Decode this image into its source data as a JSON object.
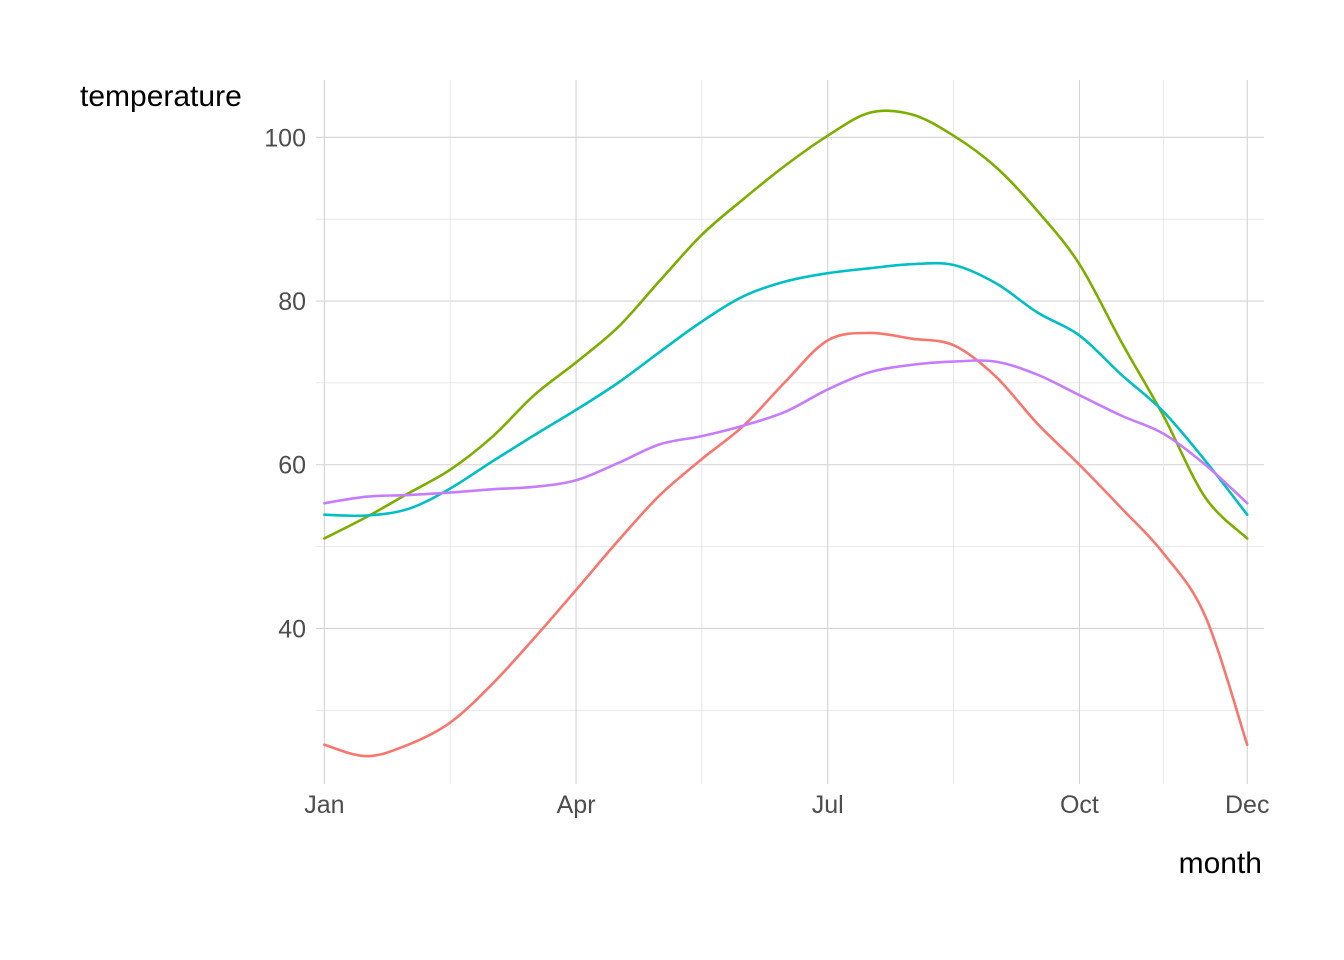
{
  "chart_data": {
    "type": "line",
    "title": "",
    "xlabel": "month",
    "ylabel": "temperature",
    "x_ticks": [
      "Jan",
      "Apr",
      "Jul",
      "Oct",
      "Dec"
    ],
    "y_ticks": [
      "40",
      "60",
      "80",
      "100"
    ],
    "xlim": [
      0.9,
      12.2
    ],
    "ylim": [
      21,
      107
    ],
    "grid": true,
    "legend": "none",
    "months": [
      1,
      1.5,
      2,
      2.5,
      3,
      3.5,
      4,
      4.5,
      5,
      5.5,
      6,
      6.5,
      7,
      7.5,
      8,
      8.5,
      9,
      9.5,
      10,
      10.5,
      11,
      11.5,
      12
    ],
    "series": [
      {
        "color": "#F8766D",
        "values": [
          25.8,
          24.4,
          25.8,
          28.5,
          33.2,
          38.8,
          44.7,
          50.7,
          56.3,
          60.7,
          64.8,
          70.2,
          75.2,
          76.1,
          75.4,
          74.6,
          70.8,
          65.0,
          60.0,
          54.7,
          49.2,
          41.5,
          25.8
        ]
      },
      {
        "color": "#7CAE00",
        "values": [
          51.0,
          53.6,
          56.5,
          59.4,
          63.4,
          68.5,
          72.5,
          76.8,
          82.5,
          88.1,
          92.5,
          96.6,
          100.2,
          103.0,
          102.8,
          100.2,
          96.4,
          91.0,
          84.5,
          75.0,
          66.0,
          56.0,
          51.0
        ]
      },
      {
        "color": "#00BFC4",
        "values": [
          53.9,
          53.8,
          54.6,
          57.1,
          60.4,
          63.6,
          66.7,
          70.0,
          73.8,
          77.5,
          80.6,
          82.4,
          83.4,
          84.0,
          84.5,
          84.4,
          82.2,
          78.6,
          75.8,
          71.0,
          66.5,
          60.5,
          53.9
        ]
      },
      {
        "color": "#C77CFF",
        "values": [
          55.3,
          56.1,
          56.3,
          56.6,
          57.0,
          57.3,
          58.1,
          60.2,
          62.5,
          63.5,
          64.8,
          66.5,
          69.2,
          71.3,
          72.2,
          72.6,
          72.6,
          71.0,
          68.5,
          66.0,
          63.8,
          60.0,
          55.3
        ]
      }
    ]
  }
}
